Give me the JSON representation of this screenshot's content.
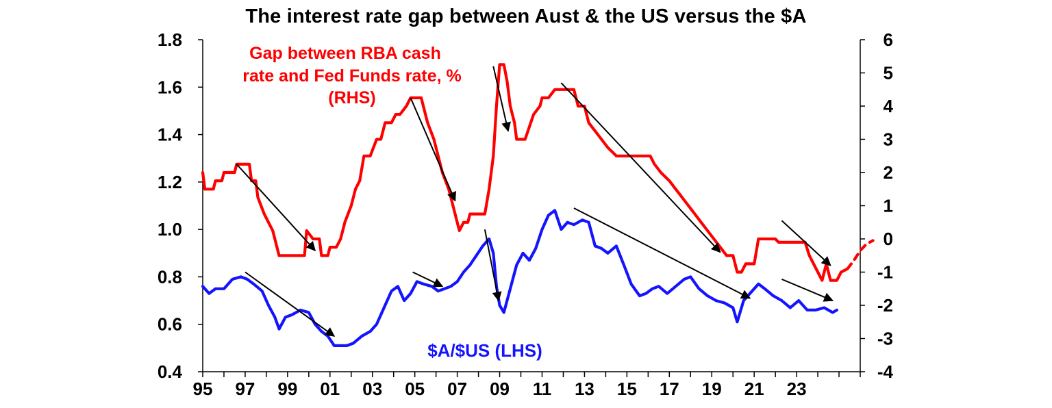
{
  "title": "The interest rate gap between Aust & the US versus the $A",
  "colors": {
    "gap": "#ff0000",
    "audusd": "#1414ff",
    "axis": "#000000",
    "arrow": "#000000"
  },
  "chart_data": {
    "type": "line",
    "title": "The interest rate gap between Aust & the US versus the $A",
    "x_ticks": [
      "95",
      "97",
      "99",
      "01",
      "03",
      "05",
      "07",
      "09",
      "11",
      "13",
      "15",
      "17",
      "19",
      "21",
      "23"
    ],
    "xlim": [
      1995,
      2026
    ],
    "left_axis": {
      "ticks": [
        "0.4",
        "0.6",
        "0.8",
        "1.0",
        "1.2",
        "1.4",
        "1.6",
        "1.8"
      ],
      "ylim": [
        0.4,
        1.8
      ]
    },
    "right_axis": {
      "ticks": [
        "-4",
        "-3",
        "-2",
        "-1",
        "0",
        "1",
        "2",
        "3",
        "4",
        "5",
        "6"
      ],
      "ylim": [
        -4,
        6
      ]
    },
    "grid": false,
    "series": [
      {
        "name": "Gap between RBA cash rate and Fed Funds rate, % (RHS)",
        "label_lines": [
          "Gap between RBA cash",
          "rate and Fed Funds rate, %",
          "(RHS)"
        ],
        "axis": "right",
        "color": "#ff0000",
        "style": "solid",
        "points": [
          [
            1995.0,
            2.0
          ],
          [
            1995.1,
            1.5
          ],
          [
            1995.5,
            1.5
          ],
          [
            1995.6,
            1.75
          ],
          [
            1995.9,
            1.75
          ],
          [
            1996.0,
            2.0
          ],
          [
            1996.5,
            2.0
          ],
          [
            1996.6,
            2.25
          ],
          [
            1997.2,
            2.25
          ],
          [
            1997.3,
            1.75
          ],
          [
            1997.5,
            1.75
          ],
          [
            1997.6,
            1.25
          ],
          [
            1997.9,
            0.75
          ],
          [
            1998.1,
            0.5
          ],
          [
            1998.3,
            0.25
          ],
          [
            1998.6,
            -0.5
          ],
          [
            1999.0,
            -0.5
          ],
          [
            1999.8,
            -0.5
          ],
          [
            1999.9,
            0.25
          ],
          [
            2000.2,
            0.0
          ],
          [
            2000.5,
            0.0
          ],
          [
            2000.6,
            -0.5
          ],
          [
            2000.9,
            -0.5
          ],
          [
            2001.0,
            -0.25
          ],
          [
            2001.3,
            -0.25
          ],
          [
            2001.5,
            0.0
          ],
          [
            2001.7,
            0.5
          ],
          [
            2002.0,
            1.0
          ],
          [
            2002.2,
            1.5
          ],
          [
            2002.4,
            1.75
          ],
          [
            2002.6,
            2.5
          ],
          [
            2002.9,
            2.5
          ],
          [
            2003.2,
            3.0
          ],
          [
            2003.4,
            3.0
          ],
          [
            2003.6,
            3.5
          ],
          [
            2003.9,
            3.5
          ],
          [
            2004.1,
            3.75
          ],
          [
            2004.3,
            3.75
          ],
          [
            2004.6,
            4.0
          ],
          [
            2004.8,
            4.25
          ],
          [
            2005.3,
            4.25
          ],
          [
            2005.6,
            3.5
          ],
          [
            2005.9,
            3.0
          ],
          [
            2006.1,
            2.5
          ],
          [
            2006.3,
            2.0
          ],
          [
            2006.6,
            1.5
          ],
          [
            2006.8,
            1.0
          ],
          [
            2006.9,
            0.75
          ],
          [
            2007.0,
            0.5
          ],
          [
            2007.1,
            0.25
          ],
          [
            2007.3,
            0.5
          ],
          [
            2007.5,
            0.5
          ],
          [
            2007.6,
            0.75
          ],
          [
            2008.3,
            0.75
          ],
          [
            2008.5,
            1.5
          ],
          [
            2008.7,
            2.5
          ],
          [
            2008.85,
            4.0
          ],
          [
            2009.0,
            5.25
          ],
          [
            2009.2,
            5.25
          ],
          [
            2009.35,
            4.75
          ],
          [
            2009.5,
            4.0
          ],
          [
            2009.7,
            3.5
          ],
          [
            2009.8,
            3.0
          ],
          [
            2010.2,
            3.0
          ],
          [
            2010.6,
            3.75
          ],
          [
            2010.9,
            4.0
          ],
          [
            2011.0,
            4.25
          ],
          [
            2011.3,
            4.25
          ],
          [
            2011.6,
            4.5
          ],
          [
            2012.5,
            4.5
          ],
          [
            2012.7,
            4.0
          ],
          [
            2013.0,
            4.0
          ],
          [
            2013.2,
            3.5
          ],
          [
            2013.5,
            3.25
          ],
          [
            2013.8,
            3.0
          ],
          [
            2014.1,
            2.75
          ],
          [
            2014.5,
            2.5
          ],
          [
            2016.1,
            2.5
          ],
          [
            2016.3,
            2.25
          ],
          [
            2016.6,
            2.0
          ],
          [
            2017.0,
            1.75
          ],
          [
            2017.3,
            1.5
          ],
          [
            2017.6,
            1.25
          ],
          [
            2017.9,
            1.0
          ],
          [
            2018.2,
            0.75
          ],
          [
            2018.5,
            0.5
          ],
          [
            2018.8,
            0.25
          ],
          [
            2019.1,
            0.0
          ],
          [
            2019.4,
            -0.25
          ],
          [
            2019.7,
            -0.5
          ],
          [
            2020.0,
            -0.5
          ],
          [
            2020.2,
            -1.0
          ],
          [
            2020.4,
            -1.0
          ],
          [
            2020.6,
            -0.75
          ],
          [
            2021.0,
            -0.75
          ],
          [
            2021.2,
            0.0
          ],
          [
            2022.0,
            0.0
          ],
          [
            2022.15,
            -0.1
          ],
          [
            2023.4,
            -0.1
          ],
          [
            2023.6,
            -0.5
          ],
          [
            2023.8,
            -0.75
          ],
          [
            2024.0,
            -1.0
          ],
          [
            2024.2,
            -1.25
          ],
          [
            2024.4,
            -0.75
          ],
          [
            2024.6,
            -1.25
          ],
          [
            2024.9,
            -1.25
          ],
          [
            2025.1,
            -1.0
          ],
          [
            2025.4,
            -0.9
          ]
        ]
      },
      {
        "name": "Gap forecast",
        "axis": "right",
        "color": "#ff0000",
        "style": "dashed",
        "points": [
          [
            2025.4,
            -0.9
          ],
          [
            2025.7,
            -0.65
          ],
          [
            2026.0,
            -0.35
          ],
          [
            2026.3,
            -0.15
          ],
          [
            2026.6,
            -0.05
          ]
        ]
      },
      {
        "name": "$A/$US (LHS)",
        "axis": "left",
        "color": "#1414ff",
        "style": "solid",
        "points": [
          [
            1995.0,
            0.76
          ],
          [
            1995.3,
            0.73
          ],
          [
            1995.6,
            0.75
          ],
          [
            1996.0,
            0.75
          ],
          [
            1996.4,
            0.79
          ],
          [
            1996.8,
            0.8
          ],
          [
            1997.1,
            0.79
          ],
          [
            1997.4,
            0.77
          ],
          [
            1997.8,
            0.74
          ],
          [
            1998.1,
            0.68
          ],
          [
            1998.4,
            0.63
          ],
          [
            1998.6,
            0.58
          ],
          [
            1998.9,
            0.63
          ],
          [
            1999.2,
            0.64
          ],
          [
            1999.6,
            0.66
          ],
          [
            2000.0,
            0.65
          ],
          [
            2000.3,
            0.6
          ],
          [
            2000.6,
            0.57
          ],
          [
            2000.9,
            0.55
          ],
          [
            2001.2,
            0.51
          ],
          [
            2001.5,
            0.51
          ],
          [
            2001.8,
            0.51
          ],
          [
            2002.1,
            0.52
          ],
          [
            2002.5,
            0.55
          ],
          [
            2002.9,
            0.57
          ],
          [
            2003.2,
            0.6
          ],
          [
            2003.5,
            0.66
          ],
          [
            2003.9,
            0.74
          ],
          [
            2004.2,
            0.76
          ],
          [
            2004.5,
            0.7
          ],
          [
            2004.8,
            0.73
          ],
          [
            2005.1,
            0.78
          ],
          [
            2005.4,
            0.77
          ],
          [
            2005.8,
            0.76
          ],
          [
            2006.1,
            0.74
          ],
          [
            2006.4,
            0.75
          ],
          [
            2006.7,
            0.76
          ],
          [
            2007.0,
            0.78
          ],
          [
            2007.3,
            0.82
          ],
          [
            2007.6,
            0.85
          ],
          [
            2007.9,
            0.89
          ],
          [
            2008.2,
            0.93
          ],
          [
            2008.5,
            0.96
          ],
          [
            2008.7,
            0.9
          ],
          [
            2008.85,
            0.76
          ],
          [
            2009.0,
            0.68
          ],
          [
            2009.2,
            0.65
          ],
          [
            2009.5,
            0.75
          ],
          [
            2009.8,
            0.85
          ],
          [
            2010.1,
            0.9
          ],
          [
            2010.4,
            0.87
          ],
          [
            2010.7,
            0.92
          ],
          [
            2011.0,
            1.0
          ],
          [
            2011.3,
            1.06
          ],
          [
            2011.6,
            1.08
          ],
          [
            2011.9,
            1.0
          ],
          [
            2012.2,
            1.03
          ],
          [
            2012.5,
            1.02
          ],
          [
            2012.9,
            1.04
          ],
          [
            2013.2,
            1.03
          ],
          [
            2013.5,
            0.93
          ],
          [
            2013.8,
            0.92
          ],
          [
            2014.1,
            0.9
          ],
          [
            2014.5,
            0.93
          ],
          [
            2014.9,
            0.84
          ],
          [
            2015.2,
            0.77
          ],
          [
            2015.6,
            0.72
          ],
          [
            2015.9,
            0.73
          ],
          [
            2016.2,
            0.75
          ],
          [
            2016.5,
            0.76
          ],
          [
            2016.9,
            0.73
          ],
          [
            2017.3,
            0.76
          ],
          [
            2017.7,
            0.79
          ],
          [
            2018.0,
            0.8
          ],
          [
            2018.4,
            0.75
          ],
          [
            2018.8,
            0.72
          ],
          [
            2019.2,
            0.7
          ],
          [
            2019.6,
            0.69
          ],
          [
            2020.0,
            0.67
          ],
          [
            2020.2,
            0.61
          ],
          [
            2020.5,
            0.7
          ],
          [
            2020.9,
            0.74
          ],
          [
            2021.2,
            0.77
          ],
          [
            2021.5,
            0.75
          ],
          [
            2021.9,
            0.72
          ],
          [
            2022.3,
            0.7
          ],
          [
            2022.7,
            0.67
          ],
          [
            2023.1,
            0.7
          ],
          [
            2023.5,
            0.66
          ],
          [
            2023.9,
            0.66
          ],
          [
            2024.3,
            0.67
          ],
          [
            2024.7,
            0.65
          ],
          [
            2024.9,
            0.66
          ]
        ]
      }
    ],
    "annotations": [
      {
        "text": "$A/$US (LHS)",
        "color": "#1414ff"
      }
    ]
  },
  "arrows": [
    {
      "from_year": 1996.6,
      "from_rhs": 2.25,
      "to_year": 2000.3,
      "to_rhs": -0.35
    },
    {
      "from_year": 2004.8,
      "from_rhs": 4.25,
      "to_year": 2006.9,
      "to_rhs": 1.15
    },
    {
      "from_year": 2008.7,
      "from_rhs": 5.2,
      "to_year": 2009.4,
      "to_rhs": 3.25
    },
    {
      "from_year": 2011.9,
      "from_rhs": 4.7,
      "to_year": 2019.4,
      "to_rhs": -0.4
    },
    {
      "from_year": 2022.3,
      "from_rhs": 0.55,
      "to_year": 2024.6,
      "to_rhs": -0.8
    },
    {
      "from_year": 1997.0,
      "from_lhs": 0.82,
      "to_year": 2001.2,
      "to_lhs": 0.55
    },
    {
      "from_year": 2004.9,
      "from_lhs": 0.82,
      "to_year": 2006.3,
      "to_lhs": 0.76
    },
    {
      "from_year": 2008.3,
      "from_lhs": 1.0,
      "to_year": 2008.95,
      "to_lhs": 0.7
    },
    {
      "from_year": 2012.5,
      "from_lhs": 1.09,
      "to_year": 2020.8,
      "to_lhs": 0.71
    },
    {
      "from_year": 2022.3,
      "from_lhs": 0.79,
      "to_year": 2024.7,
      "to_lhs": 0.7
    }
  ]
}
